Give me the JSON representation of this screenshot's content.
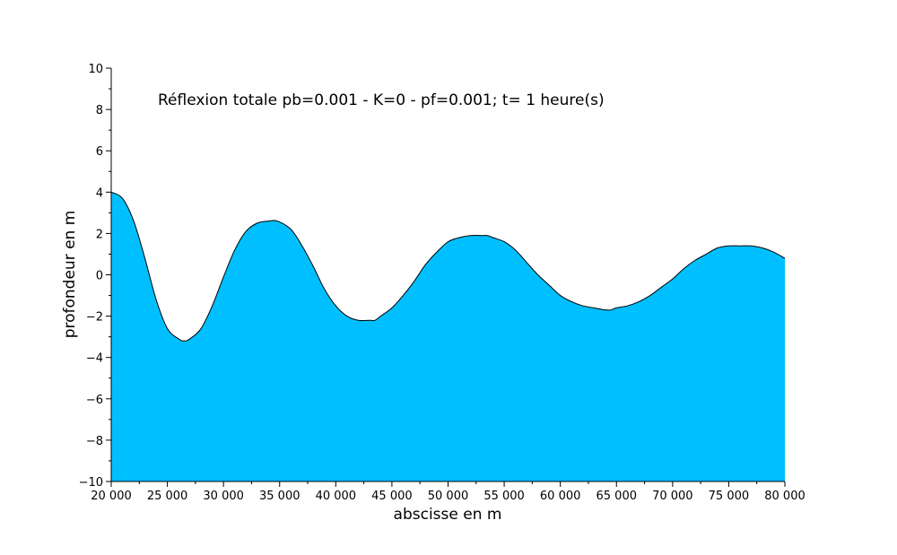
{
  "chart_data": {
    "type": "area",
    "title": "Réflexion totale pb=0.001 - K=0 - pf=0.001; t= 1 heure(s)",
    "xlabel": "abscisse en m",
    "ylabel": "profondeur en m",
    "xlim": [
      20000,
      80000
    ],
    "ylim": [
      -10,
      10
    ],
    "x_ticks": [
      20000,
      25000,
      30000,
      35000,
      40000,
      45000,
      50000,
      55000,
      60000,
      65000,
      70000,
      75000,
      80000
    ],
    "x_tick_labels": [
      "20 000",
      "25 000",
      "30 000",
      "35 000",
      "40 000",
      "45 000",
      "50 000",
      "55 000",
      "60 000",
      "65 000",
      "70 000",
      "75 000",
      "80 000"
    ],
    "y_ticks": [
      -10,
      -8,
      -6,
      -4,
      -2,
      0,
      2,
      4,
      6,
      8,
      10
    ],
    "y_tick_labels": [
      "−10",
      "−8",
      "−6",
      "−4",
      "−2",
      "0",
      "2",
      "4",
      "6",
      "8",
      "10"
    ],
    "grid": false,
    "fill_color": "#00BFFF",
    "line_color": "#000000",
    "series": [
      {
        "x": [
          20000,
          21000,
          22000,
          23000,
          24000,
          25000,
          26000,
          26500,
          27000,
          28000,
          29000,
          30000,
          31000,
          32000,
          33000,
          34000,
          34800,
          36000,
          37000,
          38000,
          39000,
          40000,
          41000,
          42000,
          43000,
          43500,
          44000,
          45000,
          46000,
          47000,
          48000,
          49000,
          50000,
          51000,
          52000,
          53000,
          53500,
          54000,
          55000,
          56000,
          57000,
          58000,
          59000,
          60000,
          61000,
          62000,
          63000,
          64000,
          64500,
          65000,
          66000,
          67000,
          68000,
          69000,
          70000,
          71000,
          72000,
          73000,
          74000,
          75000,
          76000,
          77000,
          78000,
          79000,
          80000
        ],
        "y": [
          4.0,
          3.7,
          2.6,
          0.8,
          -1.2,
          -2.6,
          -3.1,
          -3.2,
          -3.1,
          -2.6,
          -1.5,
          -0.1,
          1.2,
          2.1,
          2.5,
          2.6,
          2.6,
          2.2,
          1.4,
          0.4,
          -0.7,
          -1.5,
          -2.0,
          -2.2,
          -2.2,
          -2.2,
          -2.0,
          -1.6,
          -1.0,
          -0.3,
          0.5,
          1.1,
          1.6,
          1.8,
          1.9,
          1.9,
          1.9,
          1.8,
          1.6,
          1.2,
          0.6,
          0.0,
          -0.5,
          -1.0,
          -1.3,
          -1.5,
          -1.6,
          -1.7,
          -1.7,
          -1.6,
          -1.5,
          -1.3,
          -1.0,
          -0.6,
          -0.2,
          0.3,
          0.7,
          1.0,
          1.3,
          1.4,
          1.4,
          1.4,
          1.3,
          1.1,
          0.8
        ]
      }
    ]
  }
}
